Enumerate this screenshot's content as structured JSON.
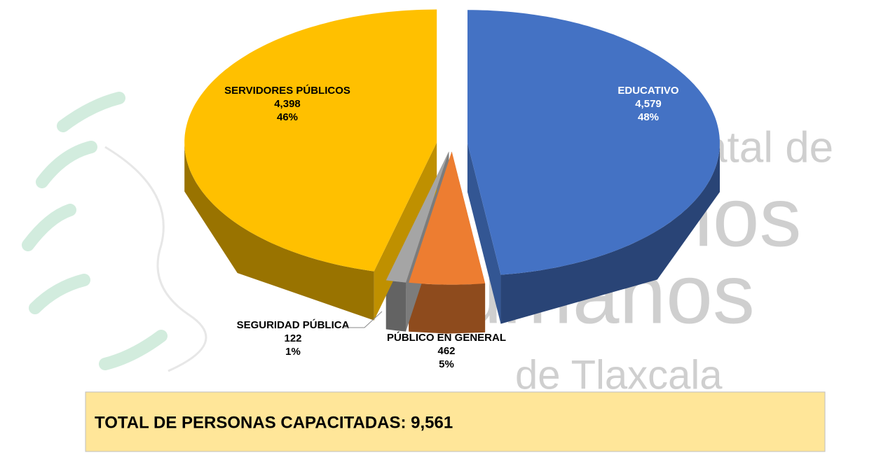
{
  "chart_data": {
    "type": "pie3d",
    "categories": [
      "EDUCATIVO",
      "PÚBLICO EN GENERAL",
      "SEGURIDAD PÚBLICA",
      "SERVIDORES PÚBLICOS"
    ],
    "values": [
      4579,
      462,
      122,
      4398
    ],
    "value_labels": [
      "4,579",
      "462",
      "122",
      "4,398"
    ],
    "percent_labels": [
      "48%",
      "5%",
      "1%",
      "46%"
    ],
    "colors": [
      "#4472c4",
      "#ed7d31",
      "#a5a5a5",
      "#ffc000"
    ],
    "total_label": "TOTAL DE PERSONAS CAPACITADAS: 9,561",
    "watermark": [
      "atal de",
      "chos",
      "umanos",
      "de Tlaxcala"
    ]
  }
}
